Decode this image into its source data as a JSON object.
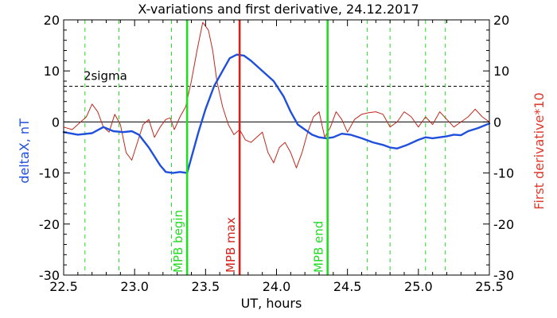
{
  "chart_data": {
    "type": "line",
    "title": "X-variations and first derivative, 24.12.2017",
    "xlabel": "UT, hours",
    "ylabel_left": "deltaX, nT",
    "ylabel_right": "First derivative*10",
    "xlim": [
      22.5,
      25.5
    ],
    "ylim": [
      -30,
      20
    ],
    "xticks": [
      "22.5",
      "23.0",
      "23.5",
      "24.0",
      "24.5",
      "25.0",
      "25.5"
    ],
    "yticks": [
      "20",
      "10",
      "0",
      "-10",
      "-20",
      "-30"
    ],
    "grid": false,
    "colors": {
      "deltaX": "#1f4fdc",
      "derivative": "#c0281c",
      "mpb_begin_end": "#22dd22",
      "mpb_max": "#d4231c",
      "threshold": "#000000",
      "left_axis_title": "#1f4fdc",
      "right_axis_title": "#e03a2c"
    },
    "threshold": {
      "label": "2sigma",
      "y": 7
    },
    "markers": [
      {
        "label": "MPB begin",
        "x": 23.37
      },
      {
        "label": "MPB max",
        "x": 23.74
      },
      {
        "label": "MPB end",
        "x": 24.36
      }
    ],
    "dashed_vlines": [
      22.65,
      22.89,
      23.26,
      24.64,
      24.8,
      25.05,
      25.19
    ],
    "series": [
      {
        "key": "deltaX",
        "x": [
          22.5,
          22.6,
          22.7,
          22.78,
          22.85,
          22.92,
          22.98,
          23.03,
          23.1,
          23.18,
          23.22,
          23.27,
          23.32,
          23.37,
          23.4,
          23.45,
          23.5,
          23.56,
          23.62,
          23.67,
          23.72,
          23.77,
          23.82,
          23.88,
          23.94,
          23.98,
          24.05,
          24.1,
          24.15,
          24.2,
          24.25,
          24.3,
          24.35,
          24.4,
          24.46,
          24.52,
          24.6,
          24.68,
          24.75,
          24.8,
          24.85,
          24.92,
          25.0,
          25.05,
          25.1,
          25.15,
          25.2,
          25.25,
          25.3,
          25.35,
          25.42,
          25.5
        ],
        "y": [
          -2,
          -2.5,
          -2.2,
          -1,
          -1.8,
          -2,
          -1.8,
          -2.5,
          -5,
          -8.5,
          -9.8,
          -10,
          -9.8,
          -10,
          -7,
          -2,
          2.5,
          7,
          10,
          12.5,
          13.2,
          13,
          12,
          10.5,
          9,
          8,
          5,
          2,
          -0.5,
          -1.5,
          -2.5,
          -3,
          -3.2,
          -3,
          -2.3,
          -2.5,
          -3.2,
          -4,
          -4.5,
          -5,
          -5.2,
          -4.5,
          -3.5,
          -3,
          -3.2,
          -3,
          -2.8,
          -2.5,
          -2.6,
          -1.8,
          -1.2,
          -0.3
        ]
      },
      {
        "key": "derivative",
        "x": [
          22.5,
          22.56,
          22.62,
          22.66,
          22.7,
          22.74,
          22.78,
          22.82,
          22.86,
          22.9,
          22.94,
          22.98,
          23.02,
          23.06,
          23.1,
          23.14,
          23.18,
          23.22,
          23.25,
          23.28,
          23.32,
          23.36,
          23.4,
          23.44,
          23.48,
          23.52,
          23.55,
          23.58,
          23.62,
          23.66,
          23.7,
          23.74,
          23.78,
          23.82,
          23.86,
          23.9,
          23.94,
          23.98,
          24.02,
          24.06,
          24.1,
          24.14,
          24.18,
          24.22,
          24.26,
          24.3,
          24.34,
          24.38,
          24.42,
          24.46,
          24.5,
          24.55,
          24.6,
          24.65,
          24.7,
          24.75,
          24.8,
          24.85,
          24.9,
          24.95,
          25.0,
          25.05,
          25.1,
          25.15,
          25.2,
          25.25,
          25.3,
          25.35,
          25.4,
          25.45,
          25.5
        ],
        "y": [
          -1,
          -1.5,
          0,
          1,
          3.5,
          2,
          -1,
          -2,
          1.5,
          -0.5,
          -6,
          -7.5,
          -4,
          -0.5,
          0.5,
          -3,
          -1,
          0.5,
          0.8,
          -1.5,
          1,
          3,
          8,
          14,
          19.5,
          18,
          14,
          8,
          3,
          -0.5,
          -2.5,
          -1.5,
          -3.5,
          -4,
          -3,
          -2,
          -6,
          -8,
          -5,
          -4,
          -6,
          -9,
          -6,
          -2,
          1,
          2,
          -3,
          -1,
          2,
          0.5,
          -2,
          0.5,
          1.5,
          1.8,
          2,
          1.5,
          -1,
          0,
          2,
          1,
          -1,
          1,
          -0.5,
          2,
          0.5,
          -1,
          0,
          1,
          2.5,
          1,
          0
        ]
      }
    ]
  }
}
